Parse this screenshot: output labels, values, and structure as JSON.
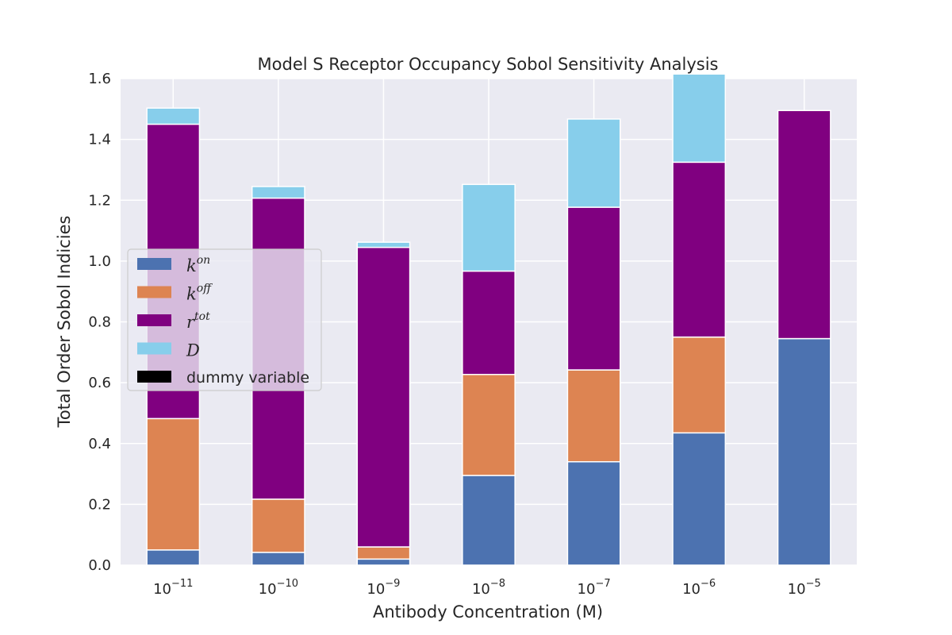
{
  "chart_data": {
    "type": "bar",
    "stacked": true,
    "title": "Model S Receptor Occupancy Sobol Sensitivity Analysis",
    "xlabel": "Antibody Concentration (M)",
    "ylabel": "Total Order Sobol Indicies",
    "ylim": [
      0,
      1.6
    ],
    "yticks": [
      "0.0",
      "0.2",
      "0.4",
      "0.6",
      "0.8",
      "1.0",
      "1.2",
      "1.4",
      "1.6"
    ],
    "categories": [
      {
        "base": "10",
        "exp": "−11"
      },
      {
        "base": "10",
        "exp": "−10"
      },
      {
        "base": "10",
        "exp": "−9"
      },
      {
        "base": "10",
        "exp": "−8"
      },
      {
        "base": "10",
        "exp": "−7"
      },
      {
        "base": "10",
        "exp": "−6"
      },
      {
        "base": "10",
        "exp": "−5"
      }
    ],
    "grid": true,
    "legend_position": "center-left",
    "series": [
      {
        "name_base": "k",
        "name_sup": "on",
        "color": "#4c72b0",
        "values": [
          0.05,
          0.042,
          0.02,
          0.295,
          0.34,
          0.435,
          0.745
        ]
      },
      {
        "name_base": "k",
        "name_sup": "off",
        "color": "#dd8452",
        "values": [
          0.432,
          0.175,
          0.04,
          0.332,
          0.302,
          0.315,
          0.0
        ]
      },
      {
        "name_base": "r",
        "name_sup": "tot",
        "color": "#800080",
        "values": [
          0.968,
          0.99,
          0.985,
          0.34,
          0.535,
          0.575,
          0.75
        ]
      },
      {
        "name_base": "D",
        "name_sup": "",
        "color": "#87ceeb",
        "values": [
          0.053,
          0.038,
          0.017,
          0.285,
          0.29,
          0.29,
          0.0
        ]
      },
      {
        "name_base": "dummy variable",
        "name_sup": "",
        "color": "#000000",
        "values": [
          0,
          0,
          0,
          0,
          0,
          0,
          0
        ]
      }
    ]
  },
  "style": {
    "plot_bg": "#eaeaf2",
    "grid_color": "#ffffff",
    "page_bg": "#ffffff"
  }
}
